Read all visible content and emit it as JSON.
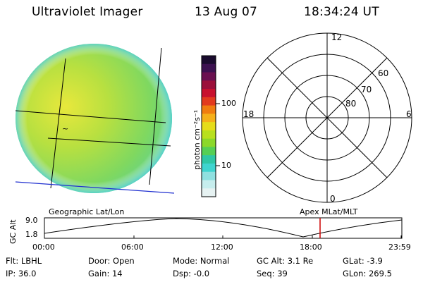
{
  "header": {
    "instrument": "Ultraviolet Imager",
    "date": "13 Aug 07",
    "time": "18:34:24 UT"
  },
  "earth_image": {
    "overlay_marker": "~"
  },
  "colorbar": {
    "unit_label": "photon cm⁻²s⁻¹",
    "ticks": [
      "100",
      "10"
    ],
    "scale": "log",
    "colors": [
      "#1a0b2e",
      "#3c1150",
      "#6a1050",
      "#9b0f3a",
      "#c8102e",
      "#e23a1e",
      "#f07d10",
      "#f5b01a",
      "#e6dd1a",
      "#b8e01e",
      "#8bd82a",
      "#55cf55",
      "#2fc7a5",
      "#3fd4cf",
      "#8fe0e0",
      "#c6eded",
      "#e6f2f2"
    ]
  },
  "polar_plot": {
    "mlt_labels": {
      "top": "12",
      "left": "18",
      "right": "6",
      "bottom": "0"
    },
    "lat_labels": [
      "60",
      "70",
      "80"
    ]
  },
  "orbit_panel": {
    "left_label": "Geographic Lat/Lon",
    "right_label": "Apex MLat/MLT",
    "y_axis_label": "GC Alt",
    "y_ticks": [
      "9.0",
      "1.8"
    ],
    "x_ticks": [
      "00:00",
      "06:00",
      "12:00",
      "18:00",
      "23:59"
    ],
    "current_time_marker_hours": 18.57
  },
  "info": {
    "row1": {
      "flt": "Flt: LBHL",
      "door": "Door: Open",
      "mode": "Mode: Normal",
      "gc_alt": "GC Alt: 3.1 Re",
      "glat": "GLat:  -3.9"
    },
    "row2": {
      "ip": "IP: 36.0",
      "gain": "Gain: 14",
      "dsp": "Dsp:   -0.0",
      "seq": "Seq: 39",
      "glon": "GLon: 269.5"
    }
  },
  "colors": {
    "grid_line": "#000000",
    "coastline": "#2030d0",
    "time_marker": "#cc0000"
  }
}
